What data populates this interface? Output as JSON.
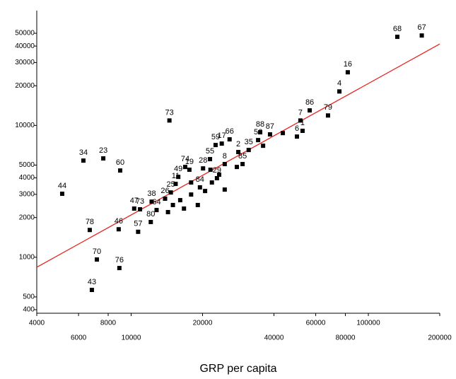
{
  "chart_data": {
    "type": "scatter",
    "x_label": "GRP per capita",
    "x_scale": "log",
    "y_scale": "log",
    "xlim": [
      4000,
      200000
    ],
    "ylim": [
      376,
      74300
    ],
    "xticks": [
      4000,
      6000,
      8000,
      10000,
      20000,
      40000,
      60000,
      80000,
      100000,
      200000
    ],
    "yticks": [
      400,
      500,
      1000,
      2000,
      3000,
      4000,
      5000,
      10000,
      20000,
      30000,
      40000,
      50000
    ],
    "fit_line": {
      "x": [
        4000,
        200000
      ],
      "y": [
        840,
        41500
      ],
      "color": "#e8231f"
    },
    "series": [
      {
        "color": "#000000",
        "x": [
          132500,
          168000,
          81900,
          75500,
          56600,
          67600,
          51700,
          50000,
          14500,
          6290,
          7630,
          8990,
          5120,
          6690,
          8860,
          7170,
          8920,
          6830,
          10700,
          10300,
          10900,
          12100,
          12800,
          12200,
          13900,
          14700,
          16900,
          22700,
          24100,
          26000,
          28300,
          31300,
          34300,
          35000,
          38500,
          52800,
          24800,
          21500,
          20100,
          17600,
          15800,
          15400,
          23000,
          19500,
          29500,
          16100,
          17900,
          19100,
          20500,
          16700,
          21900,
          23500,
          27900,
          36000,
          43600,
          24800,
          21600,
          17900,
          15000,
          14300
        ],
        "values": [
          47000,
          48100,
          25300,
          18100,
          13000,
          11900,
          10900,
          8230,
          10900,
          5410,
          5620,
          4550,
          3030,
          1610,
          1630,
          961,
          828,
          565,
          1560,
          2340,
          2310,
          1850,
          2280,
          2640,
          2780,
          3100,
          4840,
          7100,
          7280,
          7840,
          6280,
          6510,
          7740,
          8870,
          8550,
          9100,
          5090,
          5550,
          4720,
          4610,
          4070,
          3600,
          3980,
          3390,
          5090,
          2710,
          2990,
          2490,
          3180,
          2340,
          3690,
          4230,
          4840,
          7010,
          8750,
          3260,
          4610,
          3690,
          2490,
          2200
        ],
        "labels": [
          "68",
          "67",
          "16",
          "4",
          "86",
          "79",
          "7",
          "6",
          "73",
          "34",
          "23",
          "60",
          "44",
          "78",
          "46",
          "70",
          "76",
          "43",
          "57",
          "47",
          "73",
          "80",
          "64",
          "38",
          "26",
          "25",
          "74",
          "59",
          "17",
          "66",
          "2",
          "35",
          "56",
          "88",
          "87",
          "1",
          "8",
          "55",
          "28",
          "19",
          "49",
          "11",
          "29",
          "84",
          "85",
          null,
          null,
          null,
          null,
          null,
          null,
          null,
          null,
          null,
          null,
          null,
          null,
          null,
          null,
          null
        ]
      }
    ]
  }
}
